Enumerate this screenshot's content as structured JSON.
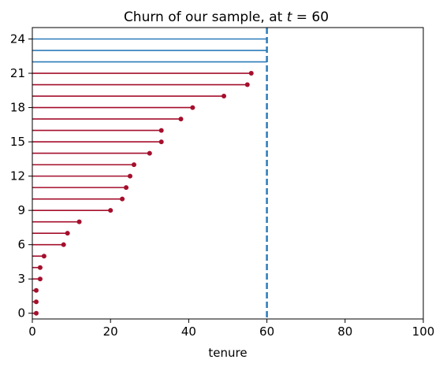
{
  "chart_data": {
    "type": "scatter",
    "title": "Churn of our sample, at t = 60",
    "xlabel": "tenure",
    "ylabel": "",
    "xlim": [
      0,
      100
    ],
    "ylim": [
      -0.5,
      25
    ],
    "xticks": [
      0,
      20,
      40,
      60,
      80,
      100
    ],
    "yticks": [
      0,
      3,
      6,
      9,
      12,
      15,
      18,
      21,
      24
    ],
    "grid": false,
    "observation_time": 60,
    "colors": {
      "churned": "#a50f2c",
      "censored": "#2b7bb9",
      "cutoff_line": "#2b7bb9"
    },
    "churned": [
      {
        "y": 0,
        "x": 1
      },
      {
        "y": 1,
        "x": 1
      },
      {
        "y": 2,
        "x": 1
      },
      {
        "y": 3,
        "x": 2
      },
      {
        "y": 4,
        "x": 2
      },
      {
        "y": 5,
        "x": 3
      },
      {
        "y": 6,
        "x": 8
      },
      {
        "y": 7,
        "x": 9
      },
      {
        "y": 8,
        "x": 12
      },
      {
        "y": 9,
        "x": 20
      },
      {
        "y": 10,
        "x": 23
      },
      {
        "y": 11,
        "x": 24
      },
      {
        "y": 12,
        "x": 25
      },
      {
        "y": 13,
        "x": 26
      },
      {
        "y": 14,
        "x": 30
      },
      {
        "y": 15,
        "x": 33
      },
      {
        "y": 16,
        "x": 33
      },
      {
        "y": 17,
        "x": 38
      },
      {
        "y": 18,
        "x": 41
      },
      {
        "y": 19,
        "x": 49
      },
      {
        "y": 20,
        "x": 55
      },
      {
        "y": 21,
        "x": 56
      }
    ],
    "censored": [
      {
        "y": 22,
        "x": 60
      },
      {
        "y": 23,
        "x": 60
      },
      {
        "y": 24,
        "x": 60
      }
    ]
  }
}
